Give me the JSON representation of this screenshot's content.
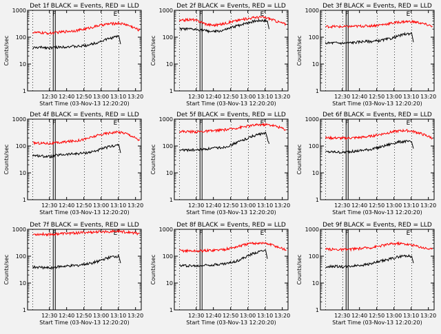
{
  "chart_data": [
    {
      "type": "line",
      "title": "Det 1f BLACK = Events, RED = LLD",
      "xlabel": "Start Time (03-Nov-13 12:20:20)",
      "ylabel": "Counts/sec",
      "ylim": [
        1,
        1000
      ],
      "yscale": "log",
      "x_ticks": [
        "12:30",
        "12:40",
        "12:50",
        "13:00",
        "13:10",
        "13:20"
      ],
      "yticks": [
        "1",
        "10",
        "100",
        "1000"
      ],
      "markers": [
        {
          "label": "F",
          "t": 12.5
        },
        {
          "label": "E",
          "t": 48
        }
      ],
      "series": [
        {
          "name": "Events",
          "color": "#000000",
          "t": [
            0,
            6,
            10,
            14,
            18,
            22,
            26,
            30,
            34,
            38,
            42,
            46,
            50,
            51
          ],
          "values": [
            40,
            42,
            40,
            42,
            44,
            45,
            45,
            48,
            55,
            65,
            80,
            95,
            110,
            55
          ]
        },
        {
          "name": "LLD",
          "color": "#ff0000",
          "t": [
            0,
            6,
            10,
            14,
            18,
            22,
            26,
            30,
            34,
            38,
            42,
            46,
            50,
            54,
            58,
            62
          ],
          "values": [
            150,
            145,
            140,
            150,
            160,
            170,
            180,
            200,
            230,
            270,
            300,
            320,
            330,
            300,
            240,
            180
          ]
        }
      ]
    },
    {
      "type": "line",
      "title": "Det 2f BLACK = Events, RED = LLD",
      "xlabel": "Start Time (03-Nov-13 12:20:20)",
      "ylabel": "Counts/sec",
      "ylim": [
        1,
        1000
      ],
      "yscale": "log",
      "x_ticks": [
        "12:30",
        "12:40",
        "12:50",
        "13:00",
        "13:10",
        "13:20"
      ],
      "yticks": [
        "1",
        "10",
        "100",
        "1000"
      ],
      "markers": [
        {
          "label": "F",
          "t": 12.5
        },
        {
          "label": "E",
          "t": 48
        }
      ],
      "series": [
        {
          "name": "Events",
          "color": "#000000",
          "t": [
            0,
            4,
            8,
            12,
            16,
            20,
            24,
            28,
            32,
            36,
            40,
            44,
            48,
            51,
            52
          ],
          "values": [
            200,
            200,
            195,
            190,
            170,
            160,
            170,
            200,
            250,
            300,
            350,
            400,
            420,
            400,
            200
          ]
        },
        {
          "name": "LLD",
          "color": "#ff0000",
          "t": [
            0,
            4,
            8,
            12,
            16,
            20,
            24,
            28,
            32,
            36,
            40,
            44,
            48,
            52,
            56,
            62
          ],
          "values": [
            400,
            450,
            450,
            380,
            300,
            280,
            300,
            350,
            400,
            450,
            500,
            550,
            560,
            500,
            400,
            300
          ]
        }
      ]
    },
    {
      "type": "line",
      "title": "Det 3f BLACK = Events, RED = LLD",
      "xlabel": "Start Time (03-Nov-13 12:20:20)",
      "ylabel": "Counts/sec",
      "ylim": [
        1,
        1000
      ],
      "yscale": "log",
      "x_ticks": [
        "12:30",
        "12:40",
        "12:50",
        "13:00",
        "13:10",
        "13:20"
      ],
      "yticks": [
        "1",
        "10",
        "100",
        "1000"
      ],
      "markers": [
        {
          "label": "F",
          "t": 12.5
        },
        {
          "label": "E",
          "t": 48
        }
      ],
      "series": [
        {
          "name": "Events",
          "color": "#000000",
          "t": [
            0,
            6,
            10,
            14,
            18,
            22,
            26,
            30,
            34,
            38,
            42,
            46,
            50,
            51
          ],
          "values": [
            60,
            62,
            60,
            62,
            65,
            70,
            70,
            72,
            80,
            90,
            110,
            130,
            140,
            65
          ]
        },
        {
          "name": "LLD",
          "color": "#ff0000",
          "t": [
            0,
            6,
            10,
            14,
            18,
            22,
            26,
            30,
            34,
            38,
            42,
            46,
            50,
            54,
            58,
            62
          ],
          "values": [
            250,
            250,
            245,
            250,
            255,
            260,
            265,
            280,
            300,
            330,
            360,
            380,
            380,
            350,
            300,
            260
          ]
        }
      ]
    },
    {
      "type": "line",
      "title": "Det 4f BLACK = Events, RED = LLD",
      "xlabel": "Start Time (03-Nov-13 12:20:20)",
      "ylabel": "Counts/sec",
      "ylim": [
        1,
        1000
      ],
      "yscale": "log",
      "x_ticks": [
        "12:30",
        "12:40",
        "12:50",
        "13:00",
        "13:10",
        "13:20"
      ],
      "yticks": [
        "1",
        "10",
        "100",
        "1000"
      ],
      "markers": [
        {
          "label": "F",
          "t": 12.5
        },
        {
          "label": "E",
          "t": 48
        }
      ],
      "series": [
        {
          "name": "Events",
          "color": "#000000",
          "t": [
            0,
            6,
            10,
            14,
            18,
            22,
            26,
            30,
            34,
            38,
            42,
            46,
            50,
            51
          ],
          "values": [
            45,
            42,
            40,
            45,
            48,
            50,
            52,
            55,
            60,
            70,
            85,
            100,
            110,
            55
          ]
        },
        {
          "name": "LLD",
          "color": "#ff0000",
          "t": [
            0,
            6,
            10,
            14,
            18,
            22,
            26,
            30,
            34,
            38,
            42,
            46,
            50,
            54,
            58,
            62
          ],
          "values": [
            130,
            128,
            125,
            130,
            140,
            150,
            160,
            180,
            210,
            250,
            290,
            320,
            330,
            300,
            230,
            160
          ]
        }
      ]
    },
    {
      "type": "line",
      "title": "Det 5f BLACK = Events, RED = LLD",
      "xlabel": "Start Time (03-Nov-13 12:20:20)",
      "ylabel": "Counts/sec",
      "ylim": [
        1,
        1000
      ],
      "yscale": "log",
      "x_ticks": [
        "12:30",
        "12:40",
        "12:50",
        "13:00",
        "13:10",
        "13:20"
      ],
      "yticks": [
        "1",
        "10",
        "100",
        "1000"
      ],
      "markers": [
        {
          "label": "F",
          "t": 12.5
        },
        {
          "label": "E",
          "t": 48
        }
      ],
      "series": [
        {
          "name": "Events",
          "color": "#000000",
          "t": [
            0,
            6,
            10,
            14,
            18,
            22,
            26,
            30,
            34,
            38,
            42,
            46,
            50,
            52
          ],
          "values": [
            70,
            72,
            70,
            75,
            80,
            85,
            90,
            110,
            140,
            180,
            230,
            270,
            300,
            120
          ]
        },
        {
          "name": "LLD",
          "color": "#ff0000",
          "t": [
            0,
            6,
            10,
            14,
            18,
            22,
            26,
            30,
            34,
            38,
            42,
            46,
            50,
            54,
            58,
            62
          ],
          "values": [
            350,
            345,
            340,
            350,
            360,
            380,
            400,
            430,
            480,
            530,
            580,
            620,
            630,
            590,
            500,
            400
          ]
        }
      ]
    },
    {
      "type": "line",
      "title": "Det 6f BLACK = Events, RED = LLD",
      "xlabel": "Start Time (03-Nov-13 12:20:20)",
      "ylabel": "Counts/sec",
      "ylim": [
        1,
        1000
      ],
      "yscale": "log",
      "x_ticks": [
        "12:30",
        "12:40",
        "12:50",
        "13:00",
        "13:10",
        "13:20"
      ],
      "yticks": [
        "1",
        "10",
        "100",
        "1000"
      ],
      "markers": [
        {
          "label": "F",
          "t": 12.5
        },
        {
          "label": "E",
          "t": 48
        }
      ],
      "series": [
        {
          "name": "Events",
          "color": "#000000",
          "t": [
            0,
            6,
            10,
            14,
            18,
            22,
            26,
            30,
            34,
            38,
            42,
            46,
            50,
            51
          ],
          "values": [
            60,
            60,
            58,
            62,
            65,
            70,
            75,
            85,
            100,
            120,
            140,
            150,
            140,
            80
          ]
        },
        {
          "name": "LLD",
          "color": "#ff0000",
          "t": [
            0,
            6,
            10,
            14,
            18,
            22,
            26,
            30,
            34,
            38,
            42,
            46,
            50,
            54,
            58,
            62
          ],
          "values": [
            200,
            200,
            195,
            200,
            205,
            215,
            230,
            260,
            290,
            330,
            360,
            380,
            360,
            310,
            250,
            200
          ]
        }
      ]
    },
    {
      "type": "line",
      "title": "Det 7f BLACK = Events, RED = LLD",
      "xlabel": "Start Time (03-Nov-13 12:20:20)",
      "ylabel": "Counts/sec",
      "ylim": [
        1,
        1000
      ],
      "yscale": "log",
      "x_ticks": [
        "12:30",
        "12:40",
        "12:50",
        "13:00",
        "13:10",
        "13:20"
      ],
      "yticks": [
        "1",
        "10",
        "100",
        "1000"
      ],
      "markers": [
        {
          "label": "F",
          "t": 12.5
        },
        {
          "label": "E",
          "t": 48
        }
      ],
      "series": [
        {
          "name": "Events",
          "color": "#000000",
          "t": [
            0,
            6,
            10,
            14,
            18,
            22,
            26,
            30,
            34,
            38,
            42,
            46,
            50,
            51
          ],
          "values": [
            40,
            38,
            36,
            40,
            42,
            44,
            46,
            50,
            55,
            65,
            80,
            95,
            100,
            55
          ]
        },
        {
          "name": "LLD",
          "color": "#ff0000",
          "t": [
            0,
            6,
            10,
            14,
            18,
            22,
            26,
            30,
            34,
            38,
            42,
            46,
            50,
            54,
            58,
            62
          ],
          "values": [
            650,
            660,
            650,
            680,
            700,
            720,
            740,
            760,
            780,
            800,
            820,
            840,
            850,
            800,
            740,
            700
          ]
        }
      ]
    },
    {
      "type": "line",
      "title": "Det 8f BLACK = Events, RED = LLD",
      "xlabel": "Start Time (03-Nov-13 12:20:20)",
      "ylabel": "Counts/sec",
      "ylim": [
        1,
        1000
      ],
      "yscale": "log",
      "x_ticks": [
        "12:30",
        "12:40",
        "12:50",
        "13:00",
        "13:10",
        "13:20"
      ],
      "yticks": [
        "1",
        "10",
        "100",
        "1000"
      ],
      "markers": [
        {
          "label": "F",
          "t": 12.5
        },
        {
          "label": "E",
          "t": 48
        }
      ],
      "series": [
        {
          "name": "Events",
          "color": "#000000",
          "t": [
            0,
            6,
            10,
            14,
            18,
            22,
            26,
            30,
            34,
            38,
            42,
            46,
            50,
            51
          ],
          "values": [
            45,
            45,
            43,
            46,
            48,
            50,
            52,
            58,
            70,
            90,
            120,
            150,
            170,
            80
          ]
        },
        {
          "name": "LLD",
          "color": "#ff0000",
          "t": [
            0,
            6,
            10,
            14,
            18,
            22,
            26,
            30,
            34,
            38,
            42,
            46,
            50,
            54,
            58,
            62
          ],
          "values": [
            160,
            158,
            155,
            160,
            165,
            170,
            180,
            200,
            230,
            270,
            300,
            310,
            300,
            260,
            210,
            170
          ]
        }
      ]
    },
    {
      "type": "line",
      "title": "Det 9f BLACK = Events, RED = LLD",
      "xlabel": "Start Time (03-Nov-13 12:20:20)",
      "ylabel": "Counts/sec",
      "ylim": [
        1,
        1000
      ],
      "yscale": "log",
      "x_ticks": [
        "12:30",
        "12:40",
        "12:50",
        "13:00",
        "13:10",
        "13:20"
      ],
      "yticks": [
        "1",
        "10",
        "100",
        "1000"
      ],
      "markers": [
        {
          "label": "F",
          "t": 12.5
        },
        {
          "label": "E",
          "t": 48
        }
      ],
      "series": [
        {
          "name": "Events",
          "color": "#000000",
          "t": [
            0,
            6,
            10,
            14,
            18,
            22,
            26,
            30,
            34,
            38,
            42,
            46,
            50,
            51
          ],
          "values": [
            40,
            42,
            40,
            42,
            45,
            48,
            52,
            60,
            70,
            80,
            95,
            105,
            100,
            55
          ]
        },
        {
          "name": "LLD",
          "color": "#ff0000",
          "t": [
            0,
            6,
            10,
            14,
            18,
            22,
            26,
            30,
            34,
            38,
            42,
            46,
            50,
            54,
            58,
            62
          ],
          "values": [
            180,
            180,
            175,
            180,
            190,
            200,
            210,
            230,
            260,
            290,
            300,
            290,
            260,
            230,
            200,
            180
          ]
        }
      ]
    }
  ]
}
